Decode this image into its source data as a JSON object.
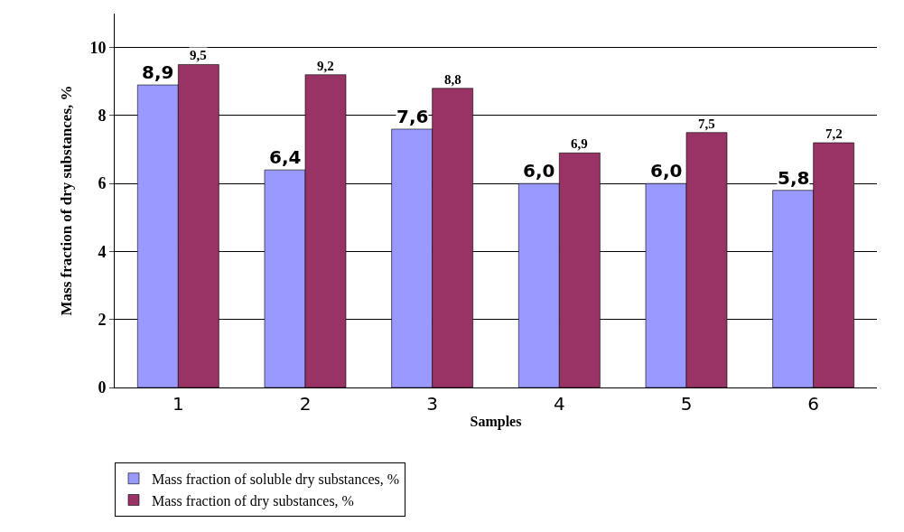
{
  "chart_data": {
    "type": "bar",
    "xlabel": "Samples",
    "ylabel": "Mass fraction of dry substances, %",
    "categories": [
      "1",
      "2",
      "3",
      "4",
      "5",
      "6"
    ],
    "series": [
      {
        "name": "Mass fraction of soluble dry substances, %",
        "color": "#9999ff",
        "values": [
          8.9,
          6.4,
          7.6,
          6.0,
          6.0,
          5.8
        ],
        "value_labels": [
          "8,9",
          "6,4",
          "7,6",
          "6,0",
          "6,0",
          "5,8"
        ]
      },
      {
        "name": "Mass fraction of dry substances, %",
        "color": "#993366",
        "values": [
          9.5,
          9.2,
          8.8,
          6.9,
          7.5,
          7.2
        ],
        "value_labels": [
          "9,5",
          "9,2",
          "8,8",
          "6,9",
          "7,5",
          "7,2"
        ]
      }
    ],
    "ylim": [
      0,
      11
    ],
    "yticks": [
      0,
      2,
      4,
      6,
      8,
      10
    ],
    "grid": "y",
    "legend": "bottom"
  }
}
